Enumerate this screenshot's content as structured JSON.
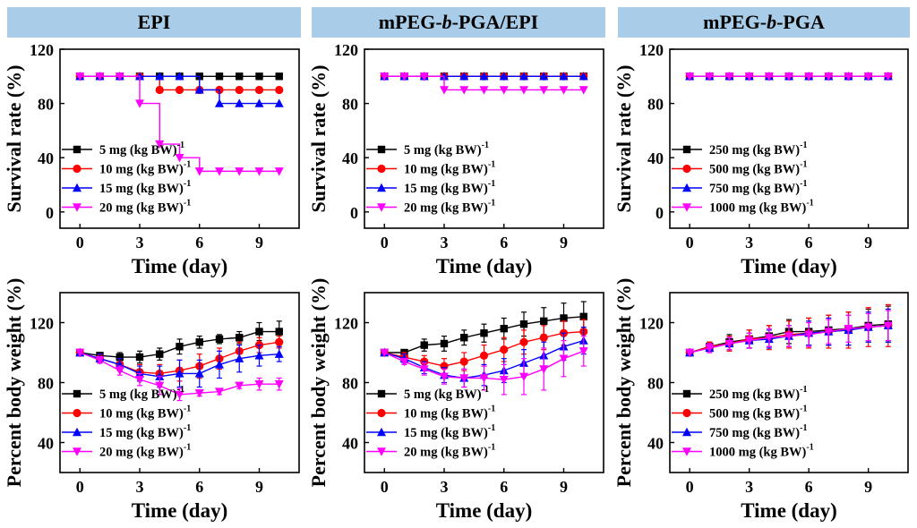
{
  "panel_titles": [
    {
      "pre": "EPI",
      "ital": "",
      "post": ""
    },
    {
      "pre": "mPEG-",
      "ital": "b",
      "post": "-PGA/EPI"
    },
    {
      "pre": "mPEG-",
      "ital": "b",
      "post": "-PGA"
    }
  ],
  "colors": {
    "header_bg": "#a9cde8",
    "s1": "#000000",
    "s2": "#ff0000",
    "s3": "#0000ff",
    "s4": "#ff00ff"
  },
  "chart_data": [
    {
      "id": "surv-epi",
      "type": "line",
      "step": true,
      "xlabel": "Time (day)",
      "ylabel": "Survival rate (%)",
      "xlim": [
        -1,
        11
      ],
      "ylim": [
        -12,
        120
      ],
      "xticks": [
        0,
        3,
        6,
        9
      ],
      "yticks": [
        0,
        40,
        80,
        120
      ],
      "legend_position": "bottom-left",
      "series": [
        {
          "name": "5 mg (kg BW)",
          "sup": "-1",
          "x": [
            0,
            1,
            2,
            3,
            4,
            5,
            6,
            7,
            8,
            9,
            10
          ],
          "values": [
            100,
            100,
            100,
            100,
            100,
            100,
            100,
            100,
            100,
            100,
            100
          ]
        },
        {
          "name": "10 mg (kg BW)",
          "sup": "-1",
          "x": [
            0,
            1,
            2,
            3,
            4,
            5,
            6,
            7,
            8,
            9,
            10
          ],
          "values": [
            100,
            100,
            100,
            100,
            90,
            90,
            90,
            90,
            90,
            90,
            90
          ]
        },
        {
          "name": "15 mg (kg BW)",
          "sup": "-1",
          "x": [
            0,
            1,
            2,
            3,
            4,
            5,
            6,
            7,
            8,
            9,
            10
          ],
          "values": [
            100,
            100,
            100,
            100,
            100,
            100,
            90,
            80,
            80,
            80,
            80
          ]
        },
        {
          "name": "20 mg (kg BW)",
          "sup": "-1",
          "x": [
            0,
            1,
            2,
            3,
            4,
            5,
            6,
            7,
            8,
            9,
            10
          ],
          "values": [
            100,
            100,
            100,
            80,
            50,
            40,
            30,
            30,
            30,
            30,
            30
          ]
        }
      ]
    },
    {
      "id": "surv-conj",
      "type": "line",
      "step": true,
      "xlabel": "Time (day)",
      "ylabel": "Survival rate (%)",
      "xlim": [
        -1,
        11
      ],
      "ylim": [
        -12,
        120
      ],
      "xticks": [
        0,
        3,
        6,
        9
      ],
      "yticks": [
        0,
        40,
        80,
        120
      ],
      "legend_position": "bottom-left",
      "series": [
        {
          "name": "5 mg (kg BW)",
          "sup": "-1",
          "x": [
            0,
            1,
            2,
            3,
            4,
            5,
            6,
            7,
            8,
            9,
            10
          ],
          "values": [
            100,
            100,
            100,
            100,
            100,
            100,
            100,
            100,
            100,
            100,
            100
          ]
        },
        {
          "name": "10 mg (kg BW)",
          "sup": "-1",
          "x": [
            0,
            1,
            2,
            3,
            4,
            5,
            6,
            7,
            8,
            9,
            10
          ],
          "values": [
            100,
            100,
            100,
            100,
            100,
            100,
            100,
            100,
            100,
            100,
            100
          ]
        },
        {
          "name": "15 mg (kg BW)",
          "sup": "-1",
          "x": [
            0,
            1,
            2,
            3,
            4,
            5,
            6,
            7,
            8,
            9,
            10
          ],
          "values": [
            100,
            100,
            100,
            100,
            100,
            100,
            100,
            100,
            100,
            100,
            100
          ]
        },
        {
          "name": "20 mg (kg BW)",
          "sup": "-1",
          "x": [
            0,
            1,
            2,
            3,
            4,
            5,
            6,
            7,
            8,
            9,
            10
          ],
          "values": [
            100,
            100,
            100,
            90,
            90,
            90,
            90,
            90,
            90,
            90,
            90
          ]
        }
      ]
    },
    {
      "id": "surv-polymer",
      "type": "line",
      "step": true,
      "xlabel": "Time (day)",
      "ylabel": "Survival rate (%)",
      "xlim": [
        -1,
        11
      ],
      "ylim": [
        -12,
        120
      ],
      "xticks": [
        0,
        3,
        6,
        9
      ],
      "yticks": [
        0,
        40,
        80,
        120
      ],
      "legend_position": "bottom-left",
      "series": [
        {
          "name": "250 mg (kg BW)",
          "sup": "-1",
          "x": [
            0,
            1,
            2,
            3,
            4,
            5,
            6,
            7,
            8,
            9,
            10
          ],
          "values": [
            100,
            100,
            100,
            100,
            100,
            100,
            100,
            100,
            100,
            100,
            100
          ]
        },
        {
          "name": "500 mg (kg BW)",
          "sup": "-1",
          "x": [
            0,
            1,
            2,
            3,
            4,
            5,
            6,
            7,
            8,
            9,
            10
          ],
          "values": [
            100,
            100,
            100,
            100,
            100,
            100,
            100,
            100,
            100,
            100,
            100
          ]
        },
        {
          "name": "750 mg (kg BW)",
          "sup": "-1",
          "x": [
            0,
            1,
            2,
            3,
            4,
            5,
            6,
            7,
            8,
            9,
            10
          ],
          "values": [
            100,
            100,
            100,
            100,
            100,
            100,
            100,
            100,
            100,
            100,
            100
          ]
        },
        {
          "name": "1000 mg (kg BW)",
          "sup": "-1",
          "x": [
            0,
            1,
            2,
            3,
            4,
            5,
            6,
            7,
            8,
            9,
            10
          ],
          "values": [
            100,
            100,
            100,
            100,
            100,
            100,
            100,
            100,
            100,
            100,
            100
          ]
        }
      ]
    },
    {
      "id": "bw-epi",
      "type": "line",
      "error_bars": true,
      "xlabel": "Time (day)",
      "ylabel": "Percent body weight (%)",
      "xlim": [
        -1,
        11
      ],
      "ylim": [
        20,
        140
      ],
      "xticks": [
        0,
        3,
        6,
        9
      ],
      "yticks": [
        40,
        80,
        120
      ],
      "legend_position": "bottom-left",
      "series": [
        {
          "name": "5 mg (kg BW)",
          "sup": "-1",
          "x": [
            0,
            1,
            2,
            3,
            4,
            5,
            6,
            7,
            8,
            9,
            10
          ],
          "values": [
            100,
            98,
            97,
            97,
            99,
            104,
            107,
            109,
            110,
            114,
            114
          ],
          "err": [
            0,
            2,
            3,
            4,
            4,
            5,
            4,
            3,
            4,
            6,
            7
          ]
        },
        {
          "name": "10 mg (kg BW)",
          "sup": "-1",
          "x": [
            0,
            1,
            2,
            3,
            4,
            5,
            6,
            7,
            8,
            9,
            10
          ],
          "values": [
            100,
            96,
            92,
            87,
            86,
            88,
            91,
            96,
            101,
            105,
            107
          ],
          "err": [
            0,
            3,
            4,
            5,
            6,
            7,
            8,
            7,
            6,
            5,
            4
          ]
        },
        {
          "name": "15 mg (kg BW)",
          "sup": "-1",
          "x": [
            0,
            1,
            2,
            3,
            4,
            5,
            6,
            7,
            8,
            9,
            10
          ],
          "values": [
            100,
            96,
            92,
            86,
            84,
            86,
            86,
            92,
            96,
            98,
            99
          ],
          "err": [
            0,
            3,
            4,
            5,
            7,
            9,
            9,
            9,
            9,
            7,
            5
          ]
        },
        {
          "name": "20 mg (kg BW)",
          "sup": "-1",
          "x": [
            0,
            1,
            2,
            3,
            4,
            5,
            6,
            7,
            8,
            9,
            10
          ],
          "values": [
            100,
            95,
            88,
            82,
            78,
            72,
            73,
            74,
            78,
            79,
            79
          ],
          "err": [
            0,
            2,
            3,
            4,
            6,
            4,
            2,
            2,
            2,
            4,
            4
          ]
        }
      ]
    },
    {
      "id": "bw-conj",
      "type": "line",
      "error_bars": true,
      "xlabel": "Time (day)",
      "ylabel": "Percent body weight (%)",
      "xlim": [
        -1,
        11
      ],
      "ylim": [
        20,
        140
      ],
      "xticks": [
        0,
        3,
        6,
        9
      ],
      "yticks": [
        40,
        80,
        120
      ],
      "legend_position": "bottom-left",
      "series": [
        {
          "name": "5 mg (kg BW)",
          "sup": "-1",
          "x": [
            0,
            1,
            2,
            3,
            4,
            5,
            6,
            7,
            8,
            9,
            10
          ],
          "values": [
            100,
            100,
            105,
            106,
            110,
            113,
            116,
            119,
            121,
            123,
            124
          ],
          "err": [
            0,
            2,
            4,
            5,
            5,
            6,
            7,
            8,
            9,
            10,
            10
          ]
        },
        {
          "name": "10 mg (kg BW)",
          "sup": "-1",
          "x": [
            0,
            1,
            2,
            3,
            4,
            5,
            6,
            7,
            8,
            9,
            10
          ],
          "values": [
            100,
            97,
            94,
            91,
            94,
            98,
            102,
            107,
            110,
            113,
            114
          ],
          "err": [
            0,
            3,
            4,
            5,
            6,
            7,
            8,
            8,
            8,
            8,
            8
          ]
        },
        {
          "name": "15 mg (kg BW)",
          "sup": "-1",
          "x": [
            0,
            1,
            2,
            3,
            4,
            5,
            6,
            7,
            8,
            9,
            10
          ],
          "values": [
            100,
            96,
            90,
            85,
            83,
            85,
            88,
            93,
            98,
            104,
            108
          ],
          "err": [
            0,
            3,
            4,
            5,
            6,
            7,
            8,
            9,
            9,
            9,
            9
          ]
        },
        {
          "name": "20 mg (kg BW)",
          "sup": "-1",
          "x": [
            0,
            1,
            2,
            3,
            4,
            5,
            6,
            7,
            8,
            9,
            10
          ],
          "values": [
            100,
            94,
            89,
            84,
            83,
            83,
            82,
            84,
            89,
            96,
            101
          ],
          "err": [
            0,
            2,
            4,
            5,
            6,
            8,
            10,
            12,
            14,
            12,
            10
          ]
        }
      ]
    },
    {
      "id": "bw-polymer",
      "type": "line",
      "error_bars": true,
      "xlabel": "Time (day)",
      "ylabel": "Percent body weight (%)",
      "xlim": [
        -1,
        11
      ],
      "ylim": [
        20,
        140
      ],
      "xticks": [
        0,
        3,
        6,
        9
      ],
      "yticks": [
        40,
        80,
        120
      ],
      "legend_position": "bottom-left",
      "series": [
        {
          "name": "250 mg (kg BW)",
          "sup": "-1",
          "x": [
            0,
            1,
            2,
            3,
            4,
            5,
            6,
            7,
            8,
            9,
            10
          ],
          "values": [
            100,
            104,
            107,
            109,
            111,
            114,
            114,
            115,
            116,
            118,
            119
          ],
          "err": [
            0,
            3,
            5,
            6,
            7,
            8,
            9,
            10,
            11,
            11,
            12
          ]
        },
        {
          "name": "500 mg (kg BW)",
          "sup": "-1",
          "x": [
            0,
            1,
            2,
            3,
            4,
            5,
            6,
            7,
            8,
            9,
            10
          ],
          "values": [
            100,
            104,
            106,
            109,
            110,
            112,
            113,
            114,
            115,
            117,
            118
          ],
          "err": [
            0,
            3,
            5,
            6,
            8,
            9,
            10,
            11,
            12,
            13,
            14
          ]
        },
        {
          "name": "750 mg (kg BW)",
          "sup": "-1",
          "x": [
            0,
            1,
            2,
            3,
            4,
            5,
            6,
            7,
            8,
            9,
            10
          ],
          "values": [
            100,
            103,
            106,
            108,
            109,
            111,
            113,
            114,
            115,
            117,
            118
          ],
          "err": [
            0,
            3,
            4,
            5,
            6,
            7,
            8,
            9,
            10,
            10,
            11
          ]
        },
        {
          "name": "1000 mg (kg BW)",
          "sup": "-1",
          "x": [
            0,
            1,
            2,
            3,
            4,
            5,
            6,
            7,
            8,
            9,
            10
          ],
          "values": [
            100,
            103,
            106,
            108,
            110,
            111,
            112,
            114,
            116,
            117,
            118
          ],
          "err": [
            0,
            3,
            4,
            5,
            6,
            7,
            8,
            8,
            9,
            9,
            10
          ]
        }
      ]
    }
  ]
}
